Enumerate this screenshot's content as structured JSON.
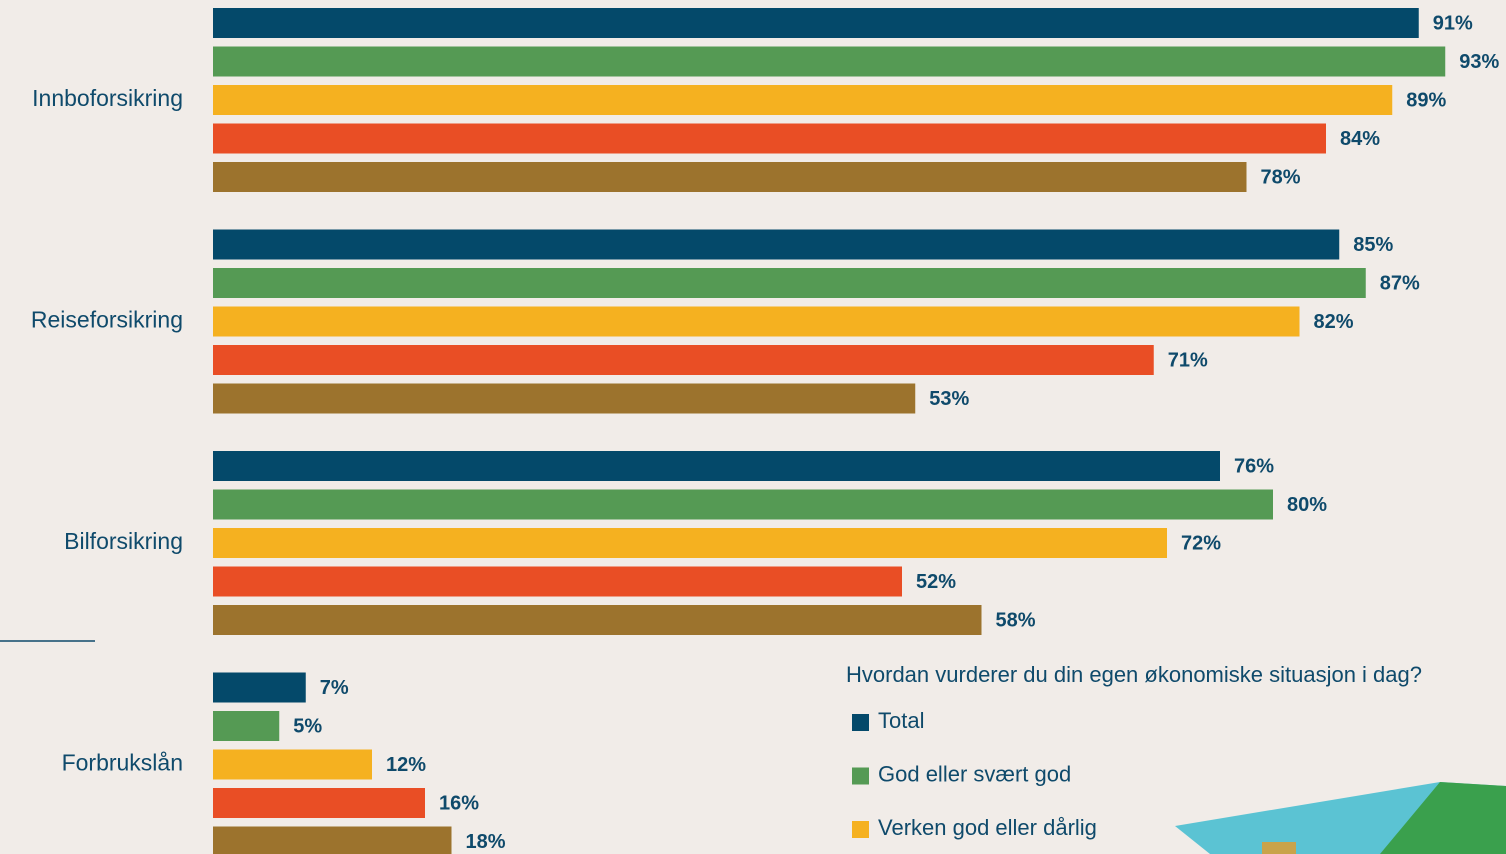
{
  "chart_data": {
    "type": "bar",
    "orientation": "horizontal",
    "categories": [
      "Innboforsikring",
      "Reiseforsikring",
      "Bilforsikring",
      "Forbrukslån"
    ],
    "legend_title": "Hvordan vurderer du din egen økonomiske situasjon i dag?",
    "series": [
      {
        "name": "Total",
        "color": "#04496a",
        "values": [
          91,
          85,
          76,
          7
        ],
        "value_labels": [
          "91%",
          "85%",
          "76%",
          "7%"
        ]
      },
      {
        "name": "God eller svært god",
        "color": "#559a54",
        "values": [
          93,
          87,
          80,
          5
        ],
        "value_labels": [
          "93%",
          "87%",
          "80%",
          "5%"
        ]
      },
      {
        "name": "Verken god eller dårlig",
        "color": "#f5b120",
        "values": [
          89,
          82,
          72,
          12
        ],
        "value_labels": [
          "89%",
          "82%",
          "72%",
          "12%"
        ]
      },
      {
        "color": "#e94e25",
        "values": [
          84,
          71,
          52,
          16
        ],
        "value_labels": [
          "84%",
          "71%",
          "52%",
          "16%"
        ]
      },
      {
        "color": "#9c732d",
        "values": [
          78,
          53,
          58,
          18
        ],
        "value_labels": [
          "78%",
          "53%",
          "58%",
          "18%"
        ]
      }
    ]
  }
}
